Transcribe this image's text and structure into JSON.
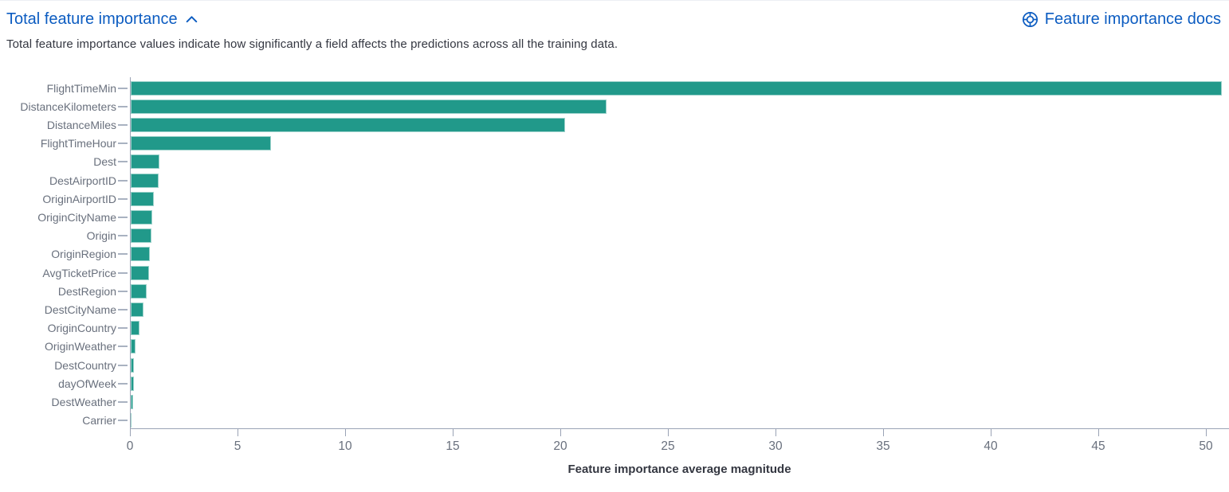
{
  "header": {
    "title": "Total feature importance",
    "docs_link_label": "Feature importance docs",
    "description": "Total feature importance values indicate how significantly a field affects the predictions across all the training data."
  },
  "icons": {
    "collapse": "chevron-up-icon",
    "docs": "life-ring-help-icon"
  },
  "colors": {
    "link_blue": "#0c5cc1",
    "bar_teal": "#21998a",
    "label_gray": "#69707d",
    "axis_gray": "#9aa3b5",
    "text_dark": "#343741"
  },
  "chart_data": {
    "type": "bar",
    "orientation": "horizontal",
    "title": "",
    "xlabel": "Feature importance average magnitude",
    "ylabel": "",
    "grid": false,
    "legend": "none",
    "xlim": [
      0,
      51.1
    ],
    "x_ticks": [
      0,
      5,
      10,
      15,
      20,
      25,
      30,
      35,
      40,
      45,
      50
    ],
    "categories": [
      "FlightTimeMin",
      "DistanceKilometers",
      "DistanceMiles",
      "FlightTimeHour",
      "Dest",
      "DestAirportID",
      "OriginAirportID",
      "OriginCityName",
      "Origin",
      "OriginRegion",
      "AvgTicketPrice",
      "DestRegion",
      "DestCityName",
      "OriginCountry",
      "OriginWeather",
      "DestCountry",
      "dayOfWeek",
      "DestWeather",
      "Carrier"
    ],
    "values": [
      50.7,
      22.1,
      20.2,
      6.5,
      1.35,
      1.3,
      1.07,
      1.0,
      0.96,
      0.9,
      0.85,
      0.74,
      0.6,
      0.42,
      0.21,
      0.16,
      0.15,
      0.12,
      0.05
    ]
  }
}
